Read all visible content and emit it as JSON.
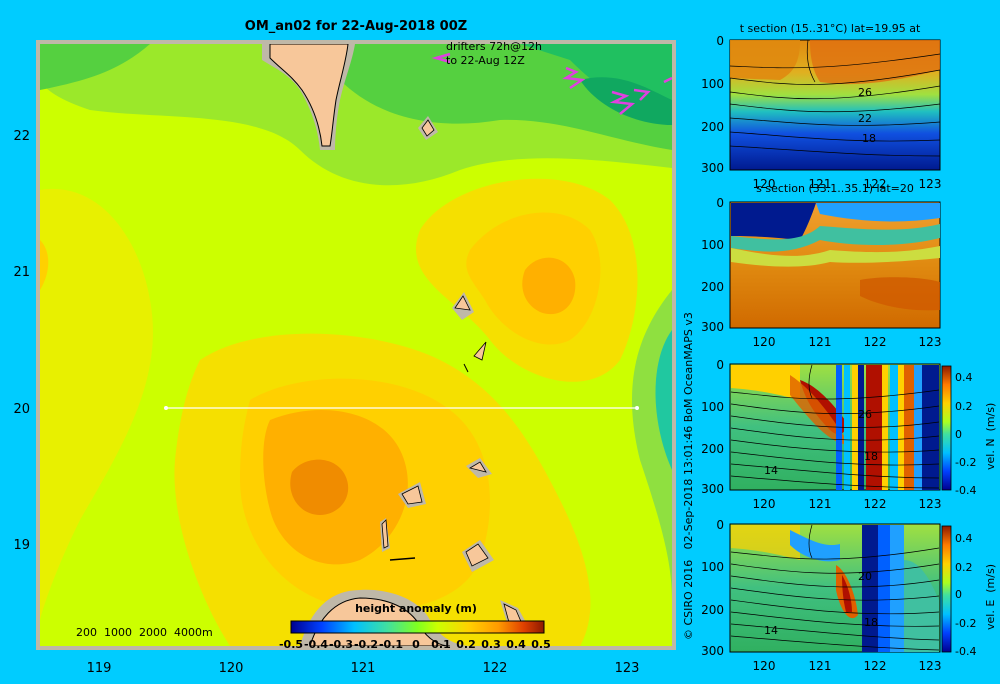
{
  "main_map": {
    "title": "OM_an02 for 22-Aug-2018 00Z",
    "drifter_note_line1": "drifters 72h@12h",
    "drifter_note_line2": "to 22-Aug 12Z",
    "x_ticks": [
      "119",
      "120",
      "121",
      "122",
      "123"
    ],
    "y_ticks": [
      "22",
      "21",
      "20",
      "19"
    ],
    "depth_legend": "200  1000  2000  4000m",
    "section_line": {
      "lat": 20,
      "lon_start": 119.5,
      "lon_end": 123.2
    },
    "colorbar": {
      "title": "height anomaly  (m)",
      "ticks": [
        "-0.5",
        "-0.4",
        "-0.3",
        "-0.2",
        "-0.1",
        "0",
        "0.1",
        "0.2",
        "0.3",
        "0.4",
        "0.5"
      ],
      "range": [
        -0.5,
        0.5
      ]
    }
  },
  "credit": "© CSIRO 2016   02-Sep-2018 13:01:46 BoM OceanMAPS v3",
  "panels": {
    "t_section": {
      "title": "t section (15..31°C) lat=19.95 at",
      "y_ticks": [
        "0",
        "100",
        "200",
        "300"
      ],
      "x_ticks": [
        "120",
        "121",
        "122",
        "123"
      ],
      "contour_labels": [
        "26",
        "22",
        "18"
      ]
    },
    "s_section": {
      "title": "s section (33.1..35.1) lat=20",
      "y_ticks": [
        "0",
        "100",
        "200",
        "300"
      ],
      "x_ticks": [
        "120",
        "121",
        "122",
        "123"
      ]
    },
    "vn_section": {
      "y_ticks": [
        "0",
        "100",
        "200",
        "300"
      ],
      "x_ticks": [
        "120",
        "121",
        "122",
        "123"
      ],
      "contour_labels": [
        "26",
        "18",
        "14"
      ],
      "cbar_label": "vel. N  (m/s)",
      "cbar_ticks": [
        "0.4",
        "0.2",
        "0",
        "-0.2",
        "-0.4"
      ]
    },
    "ve_section": {
      "y_ticks": [
        "0",
        "100",
        "200",
        "300"
      ],
      "x_ticks": [
        "120",
        "121",
        "122",
        "123"
      ],
      "contour_labels": [
        "20",
        "18",
        "14"
      ],
      "cbar_label": "vel. E  (m/s)",
      "cbar_ticks": [
        "0.4",
        "0.2",
        "0",
        "-0.2",
        "-0.4"
      ]
    }
  },
  "colors": {
    "background": "#00ccff",
    "land": "#f7c79a",
    "shallow": "#bfb8a8",
    "anomaly_low": "#00008f",
    "anomaly_high": "#8c1a00",
    "drifter": "#e040e0"
  }
}
